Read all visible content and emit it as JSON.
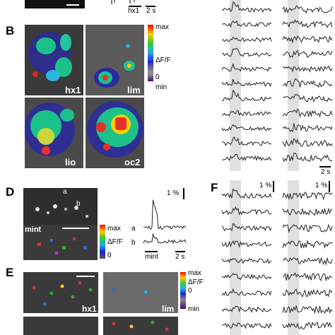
{
  "panels": {
    "B": "B",
    "D": "D",
    "E": "E",
    "F": "F"
  },
  "top_strip": {
    "bar_label": "hx1",
    "time_label": "2 s"
  },
  "panelB": {
    "image_labels": [
      "hx1",
      "lim",
      "lio",
      "oc2"
    ],
    "colorbar": {
      "max": "max",
      "metric": "ΔF/F",
      "zero": "0",
      "min": "min"
    },
    "time_scale": "2 s"
  },
  "panelD": {
    "cell_a": "a",
    "cell_b": "b",
    "overlay_label": "mint",
    "colorbar": {
      "max": "max",
      "metric": "ΔF/F",
      "zero": "0"
    },
    "amp_scale": "1 %",
    "trace_a": "a",
    "trace_b": "b",
    "stim_label": "mint",
    "time_scale": "2 s"
  },
  "panelE": {
    "image_labels": [
      "hx1",
      "lim"
    ],
    "colorbar": {
      "max": "max",
      "metric": "ΔF/F",
      "zero": "0",
      "min": "min"
    }
  },
  "panelF": {
    "amp_scale_1": "1 %",
    "amp_scale_2": "1 %"
  }
}
